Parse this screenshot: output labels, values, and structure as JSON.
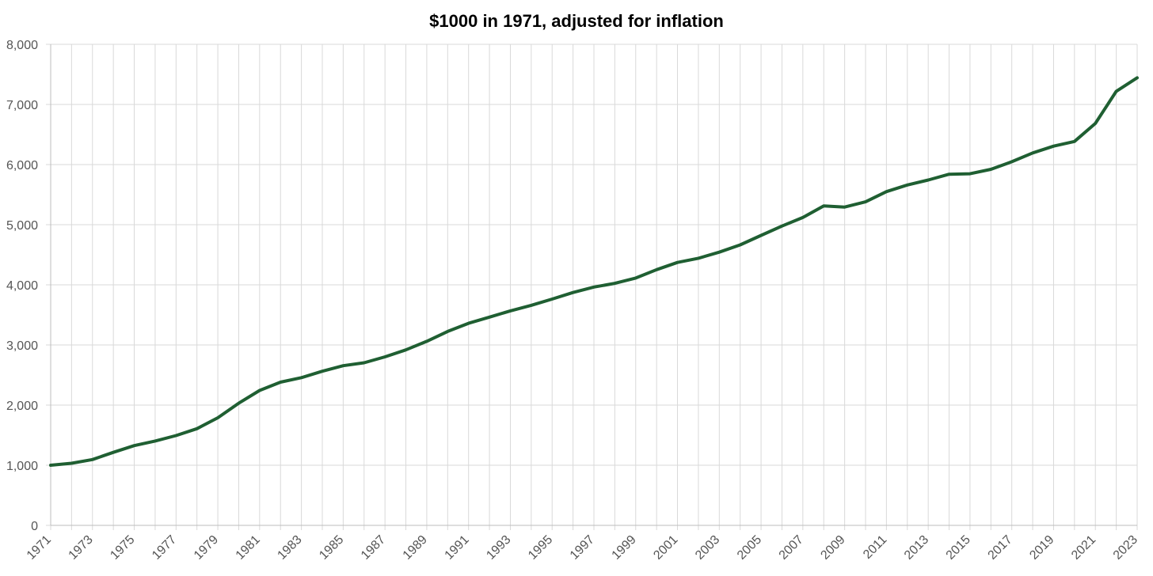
{
  "chart_data": {
    "type": "line",
    "title": "$1000 in 1971, adjusted for inflation",
    "xlabel": "",
    "ylabel": "",
    "x": [
      1971,
      1972,
      1973,
      1974,
      1975,
      1976,
      1977,
      1978,
      1979,
      1980,
      1981,
      1982,
      1983,
      1984,
      1985,
      1986,
      1987,
      1988,
      1989,
      1990,
      1991,
      1992,
      1993,
      1994,
      1995,
      1996,
      1997,
      1998,
      1999,
      2000,
      2001,
      2002,
      2003,
      2004,
      2005,
      2006,
      2007,
      2008,
      2009,
      2010,
      2011,
      2012,
      2013,
      2014,
      2015,
      2016,
      2017,
      2018,
      2019,
      2020,
      2021,
      2022,
      2023
    ],
    "series": [
      {
        "values": [
          1000,
          1033,
          1095,
          1215,
          1326,
          1402,
          1494,
          1608,
          1790,
          2032,
          2243,
          2381,
          2457,
          2563,
          2655,
          2704,
          2803,
          2919,
          3060,
          3225,
          3361,
          3463,
          3567,
          3659,
          3763,
          3873,
          3963,
          4025,
          4113,
          4252,
          4373,
          4442,
          4543,
          4665,
          4822,
          4978,
          5120,
          5312,
          5293,
          5380,
          5550,
          5661,
          5744,
          5840,
          5847,
          5921,
          6047,
          6194,
          6306,
          6384,
          6684,
          7219,
          7443
        ]
      }
    ],
    "xlim": [
      1971,
      2023
    ],
    "ylim": [
      0,
      8000
    ],
    "x_ticks": [
      "1971",
      "1973",
      "1975",
      "1977",
      "1979",
      "1981",
      "1983",
      "1985",
      "1987",
      "1989",
      "1991",
      "1993",
      "1995",
      "1997",
      "1999",
      "2001",
      "2003",
      "2005",
      "2007",
      "2009",
      "2011",
      "2013",
      "2015",
      "2017",
      "2019",
      "2021",
      "2023"
    ],
    "y_ticks": [
      "0",
      "1,000",
      "2,000",
      "3,000",
      "4,000",
      "5,000",
      "6,000",
      "7,000",
      "8,000"
    ],
    "grid": true,
    "legend": "none",
    "colors": {
      "line": "#1f5f32",
      "grid": "#d9d9d9",
      "axis": "#bdbdbd",
      "tick_text": "#555555"
    }
  }
}
